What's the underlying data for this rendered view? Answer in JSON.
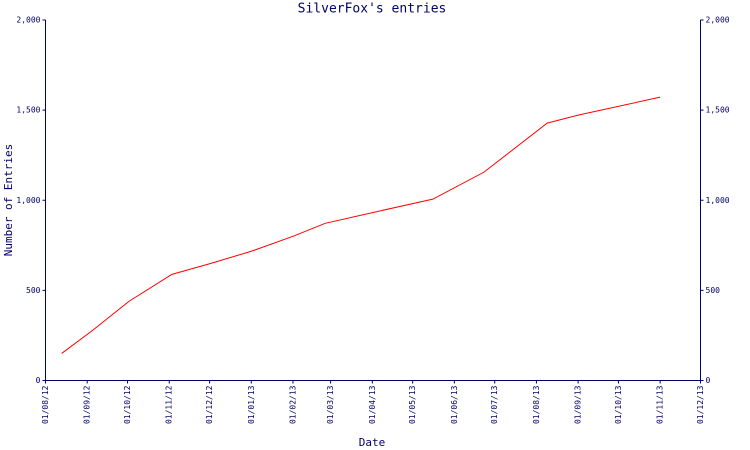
{
  "chart_data": {
    "type": "line",
    "title": "SilverFox's entries",
    "x_label": "Date",
    "y_label": "Number of Entries",
    "x": [
      "2012-08-13",
      "2012-09-05",
      "2012-10-02",
      "2012-11-03",
      "2012-12-02",
      "2013-01-01",
      "2013-02-01",
      "2013-02-25",
      "2013-04-02",
      "2013-05-16",
      "2013-06-23",
      "2013-08-09",
      "2013-09-01",
      "2013-11-01"
    ],
    "values": [
      150,
      278,
      439,
      589,
      650,
      717,
      800,
      872,
      933,
      1006,
      1156,
      1428,
      1472,
      1572
    ],
    "color": "#ff0000",
    "xlim": [
      "2012-08-01",
      "2013-12-01"
    ],
    "xticks": [
      {
        "value": "2012-08-01",
        "label": "01/08/12"
      },
      {
        "value": "2012-09-01",
        "label": "01/09/12"
      },
      {
        "value": "2012-10-01",
        "label": "01/10/12"
      },
      {
        "value": "2012-11-01",
        "label": "01/11/12"
      },
      {
        "value": "2012-12-01",
        "label": "01/12/12"
      },
      {
        "value": "2013-01-01",
        "label": "01/01/13"
      },
      {
        "value": "2013-02-01",
        "label": "01/02/13"
      },
      {
        "value": "2013-03-01",
        "label": "01/03/13"
      },
      {
        "value": "2013-04-01",
        "label": "01/04/13"
      },
      {
        "value": "2013-05-01",
        "label": "01/05/13"
      },
      {
        "value": "2013-06-01",
        "label": "01/06/13"
      },
      {
        "value": "2013-07-01",
        "label": "01/07/13"
      },
      {
        "value": "2013-08-01",
        "label": "01/08/13"
      },
      {
        "value": "2013-09-01",
        "label": "01/09/13"
      },
      {
        "value": "2013-10-01",
        "label": "01/10/13"
      },
      {
        "value": "2013-11-01",
        "label": "01/11/13"
      },
      {
        "value": "2013-12-01",
        "label": "01/12/13"
      }
    ],
    "ylim": [
      0,
      2000
    ],
    "yticks": [
      0,
      500,
      {
        "value": 1000,
        "label": "1,000"
      },
      {
        "value": 1500,
        "label": "1,500"
      },
      {
        "value": 2000,
        "label": "2,000"
      }
    ],
    "y2lim": [
      0,
      2000
    ],
    "y2ticks": [
      0,
      500,
      {
        "value": 1000,
        "label": "1,000"
      },
      {
        "value": 1500,
        "label": "1,500"
      },
      {
        "value": 2000,
        "label": "2,000"
      }
    ]
  }
}
